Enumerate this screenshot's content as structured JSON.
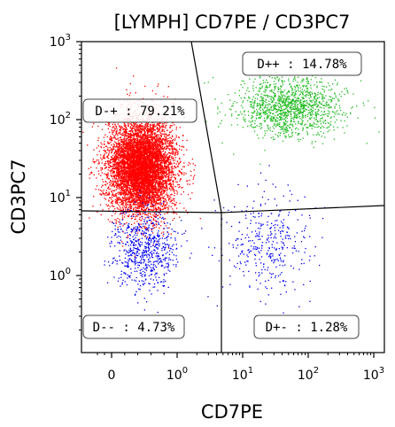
{
  "chart_data": {
    "type": "scatter",
    "title": "[LYMPH] CD7PE / CD3PC7",
    "xlabel": "CD7PE",
    "ylabel": "CD3PC7",
    "x_scale": "log",
    "y_scale": "log",
    "x_ticks": [
      {
        "value": 0,
        "base": "0",
        "exp": ""
      },
      {
        "value": 1,
        "base": "10",
        "exp": "0"
      },
      {
        "value": 10,
        "base": "10",
        "exp": "1"
      },
      {
        "value": 100,
        "base": "10",
        "exp": "2"
      },
      {
        "value": 1000,
        "base": "10",
        "exp": "3"
      }
    ],
    "y_ticks": [
      {
        "value": 1,
        "base": "10",
        "exp": "0"
      },
      {
        "value": 10,
        "base": "10",
        "exp": "1"
      },
      {
        "value": 100,
        "base": "10",
        "exp": "2"
      },
      {
        "value": 1000,
        "base": "10",
        "exp": "3"
      }
    ],
    "quadrants": [
      {
        "name": "D-+",
        "label": "D-+ : 79.21%",
        "percent": 79.21,
        "color": "#ff0000"
      },
      {
        "name": "D++",
        "label": "D++ : 14.78%",
        "percent": 14.78,
        "color": "#22bb22"
      },
      {
        "name": "D--",
        "label": "D-- : 4.73%",
        "percent": 4.73,
        "color": "#0000ee"
      },
      {
        "name": "D+-",
        "label": "D+- : 1.28%",
        "percent": 1.28,
        "color": "#0000ee"
      }
    ],
    "populations": [
      {
        "name": "D-+",
        "color": "#ff0000",
        "center": [
          0.45,
          25
        ],
        "spread": [
          0.45,
          0.55
        ],
        "share": 0.7921
      },
      {
        "name": "D++",
        "color": "#22bb22",
        "center": [
          55,
          150
        ],
        "spread": [
          0.75,
          0.35
        ],
        "share": 0.1478
      },
      {
        "name": "D--",
        "color": "#0000ee",
        "center": [
          0.5,
          2.2
        ],
        "spread": [
          0.45,
          0.45
        ],
        "share": 0.0473
      },
      {
        "name": "D+-",
        "color": "#0000ee",
        "center": [
          25,
          2.5
        ],
        "spread": [
          0.6,
          0.6
        ],
        "share": 0.0128
      }
    ]
  }
}
